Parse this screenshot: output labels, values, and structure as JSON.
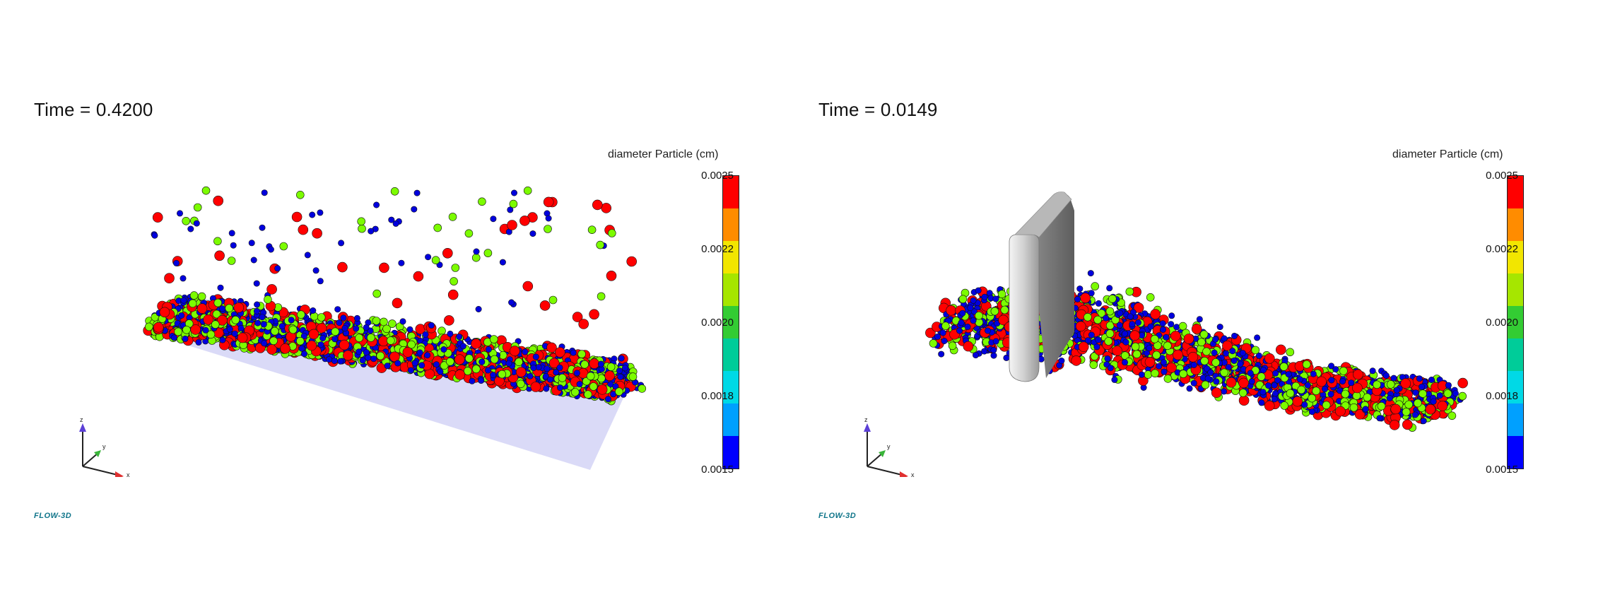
{
  "panels": [
    {
      "time_label": "Time = 0.4200",
      "colorbar": {
        "title": "diameter Particle (cm)",
        "ticks": [
          "0.0025",
          "0.0022",
          "0.0020",
          "0.0018",
          "0.0015"
        ]
      },
      "axis": {
        "z": "z",
        "y": "y",
        "x": "x"
      },
      "logo": "FLOW-3D"
    },
    {
      "time_label": "Time = 0.0149",
      "colorbar": {
        "title": "diameter Particle (cm)",
        "ticks": [
          "0.0025",
          "0.0022",
          "0.0020",
          "0.0018",
          "0.0015"
        ]
      },
      "axis": {
        "z": "z",
        "y": "y",
        "x": "x"
      },
      "logo": "FLOW-3D"
    }
  ],
  "colors": {
    "colormap": [
      "#ff0000",
      "#ff8c00",
      "#f2e600",
      "#a6e600",
      "#33cc33",
      "#00cc99",
      "#00d9e6",
      "#00a0ff",
      "#0000ff"
    ],
    "particle_large": "#ff0000",
    "particle_medium": "#7cfc00",
    "particle_small": "#0000dd"
  }
}
